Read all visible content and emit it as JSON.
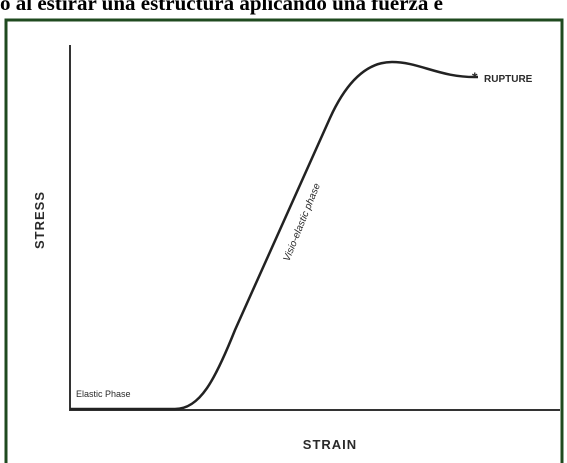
{
  "header": {
    "caption": "o al estirar una estructura aplicando una fuerza e"
  },
  "figure": {
    "y_axis_label": "STRESS",
    "x_axis_label": "STRAIN",
    "annotations": {
      "elastic": "Elastic Phase",
      "visco": "Visio-elastic phase",
      "rupture": "RUPTURE"
    }
  }
}
